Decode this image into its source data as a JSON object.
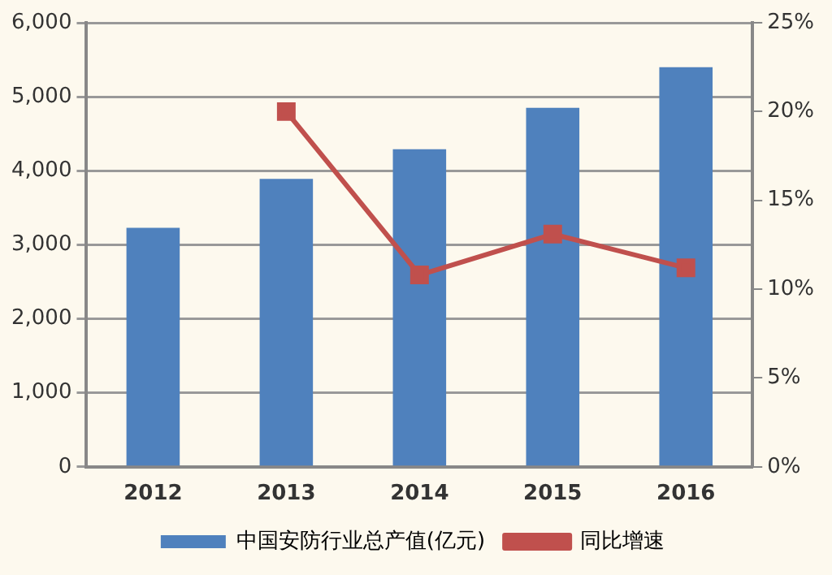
{
  "chart_data": {
    "type": "bar",
    "categories": [
      "2012",
      "2013",
      "2014",
      "2015",
      "2016"
    ],
    "series": [
      {
        "name": "中国安防行业总产值(亿元)",
        "color": "#4f81bd",
        "values": [
          3230,
          3890,
          4290,
          4850,
          5400
        ]
      },
      {
        "name": "同比增速",
        "type": "line",
        "axis": "y2",
        "color": "#c0504d",
        "marker": "square",
        "values": [
          null,
          20,
          10.8,
          13.1,
          11.2
        ]
      }
    ],
    "ylim": [
      0,
      6000
    ],
    "yticks": [
      {
        "value": 0,
        "label": "0"
      },
      {
        "value": 1000,
        "label": "1,000"
      },
      {
        "value": 2000,
        "label": "2,000"
      },
      {
        "value": 3000,
        "label": "3,000"
      },
      {
        "value": 4000,
        "label": "4,000"
      },
      {
        "value": 5000,
        "label": "5,000"
      },
      {
        "value": 6000,
        "label": "6,000"
      }
    ],
    "y2lim": [
      0,
      25
    ],
    "y2ticks": [
      {
        "value": 0,
        "label": "0%"
      },
      {
        "value": 5,
        "label": "5%"
      },
      {
        "value": 10,
        "label": "10%"
      },
      {
        "value": 15,
        "label": "15%"
      },
      {
        "value": 20,
        "label": "20%"
      },
      {
        "value": 25,
        "label": "25%"
      }
    ],
    "grid": "y",
    "legend": "bottom"
  }
}
